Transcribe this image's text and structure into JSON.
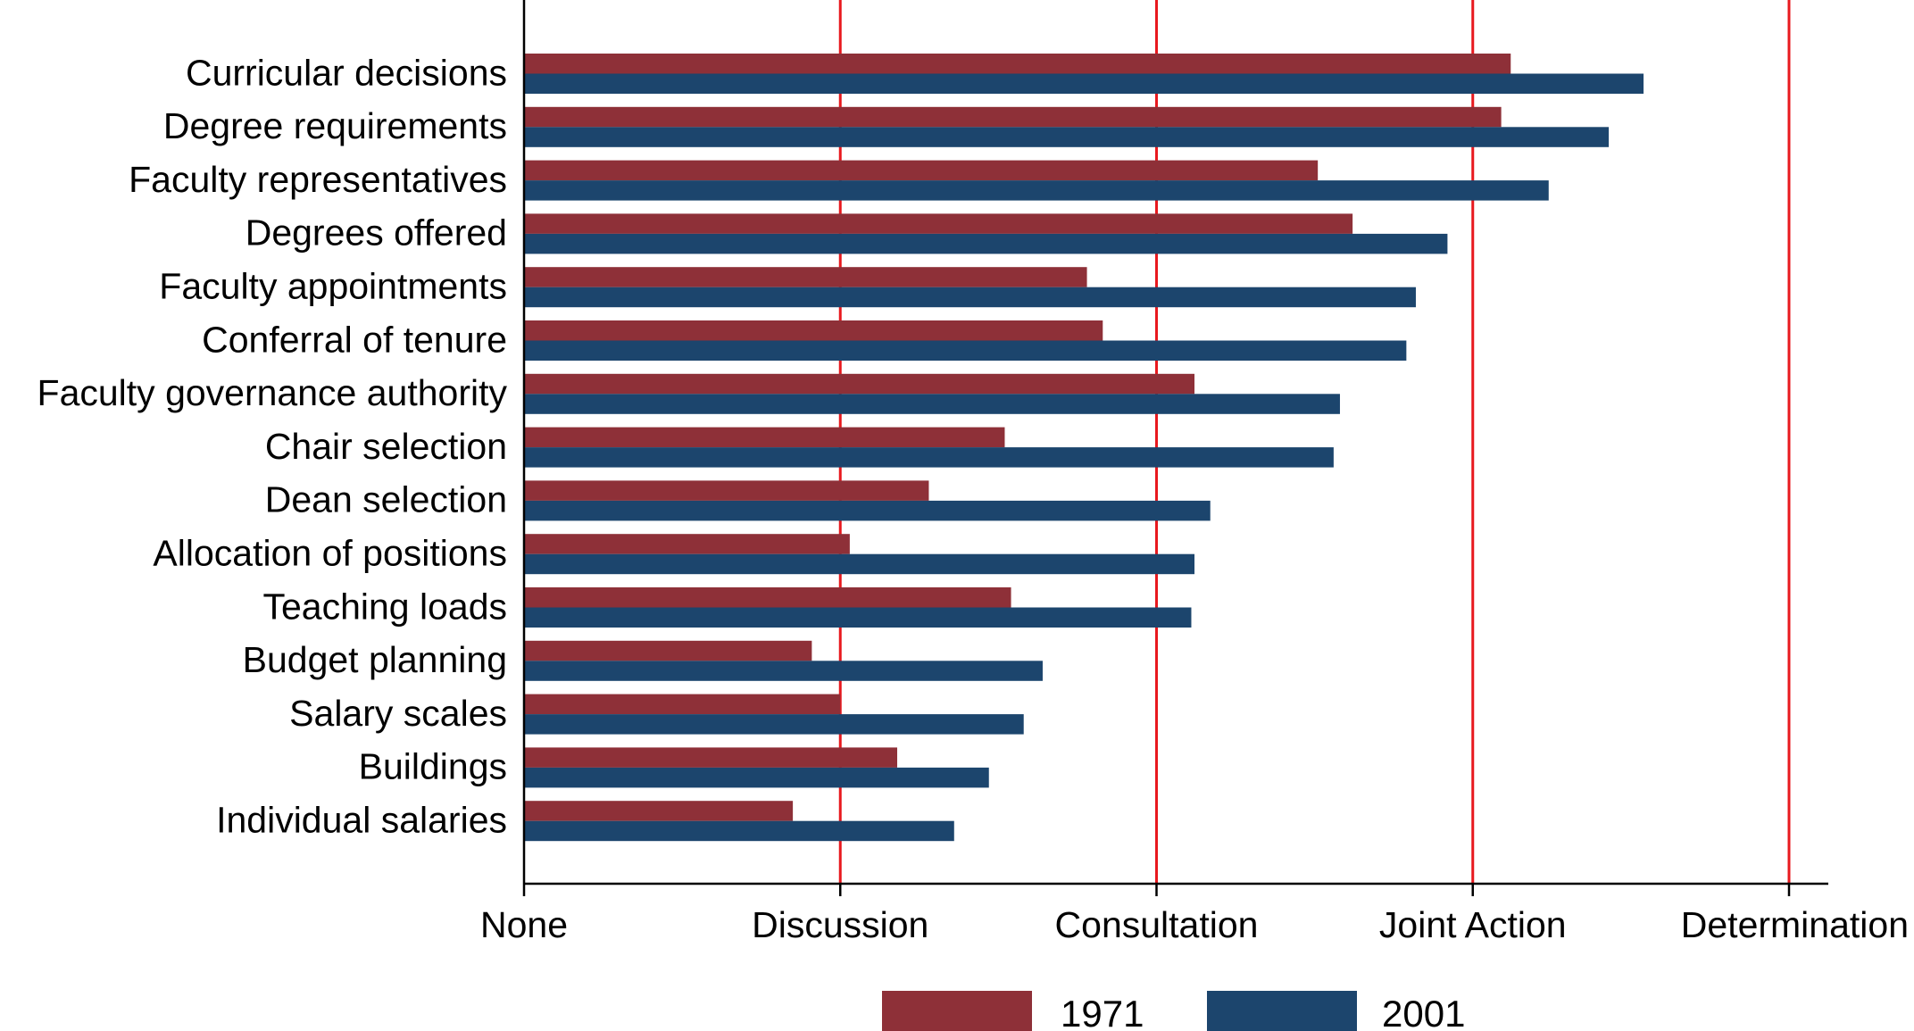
{
  "chart_data": {
    "type": "bar",
    "orientation": "horizontal",
    "title": "",
    "xlabel": "",
    "ylabel": "",
    "categories": [
      "Curricular decisions",
      "Degree requirements",
      "Faculty representatives",
      "Degrees offered",
      "Faculty appointments",
      "Conferral of tenure",
      "Faculty governance authority",
      "Chair selection",
      "Dean selection",
      "Allocation of positions",
      "Teaching loads",
      "Budget planning",
      "Salary scales",
      "Buildings",
      "Individual salaries"
    ],
    "series": [
      {
        "name": "1971",
        "color": "#8e3038",
        "values": [
          3.12,
          3.09,
          2.51,
          2.62,
          1.78,
          1.83,
          2.12,
          1.52,
          1.28,
          1.03,
          1.54,
          0.91,
          1.0,
          1.18,
          0.85
        ]
      },
      {
        "name": "2001",
        "color": "#1c456d",
        "values": [
          3.54,
          3.43,
          3.24,
          2.92,
          2.82,
          2.79,
          2.58,
          2.56,
          2.17,
          2.12,
          2.11,
          1.64,
          1.58,
          1.47,
          1.36
        ]
      }
    ],
    "xlim": [
      0,
      4
    ],
    "xticks": [
      0,
      1,
      2,
      3,
      4
    ],
    "xtick_labels": [
      "None",
      "Discussion",
      "Consultation",
      "Joint Action",
      "Determination"
    ],
    "reference_line_color": "#e8191e",
    "grid": false,
    "legend_position": "bottom"
  }
}
